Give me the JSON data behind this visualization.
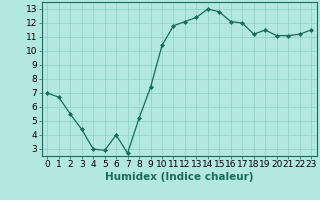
{
  "x": [
    0,
    1,
    2,
    3,
    4,
    5,
    6,
    7,
    8,
    9,
    10,
    11,
    12,
    13,
    14,
    15,
    16,
    17,
    18,
    19,
    20,
    21,
    22,
    23
  ],
  "y": [
    7.0,
    6.7,
    5.5,
    4.4,
    3.0,
    2.9,
    4.0,
    2.7,
    5.2,
    7.4,
    10.4,
    11.8,
    12.1,
    12.4,
    13.0,
    12.8,
    12.1,
    12.0,
    11.2,
    11.5,
    11.1,
    11.1,
    11.2,
    11.5
  ],
  "xlabel": "Humidex (Indice chaleur)",
  "ylim": [
    2.5,
    13.5
  ],
  "xlim": [
    -0.5,
    23.5
  ],
  "yticks": [
    3,
    4,
    5,
    6,
    7,
    8,
    9,
    10,
    11,
    12,
    13
  ],
  "xticks": [
    0,
    1,
    2,
    3,
    4,
    5,
    6,
    7,
    8,
    9,
    10,
    11,
    12,
    13,
    14,
    15,
    16,
    17,
    18,
    19,
    20,
    21,
    22,
    23
  ],
  "line_color": "#1a6b5a",
  "marker": "D",
  "marker_size": 2.0,
  "bg_color": "#b2e8e0",
  "grid_color": "#8ecfc7",
  "xlabel_fontsize": 7.5,
  "tick_fontsize": 6.5
}
